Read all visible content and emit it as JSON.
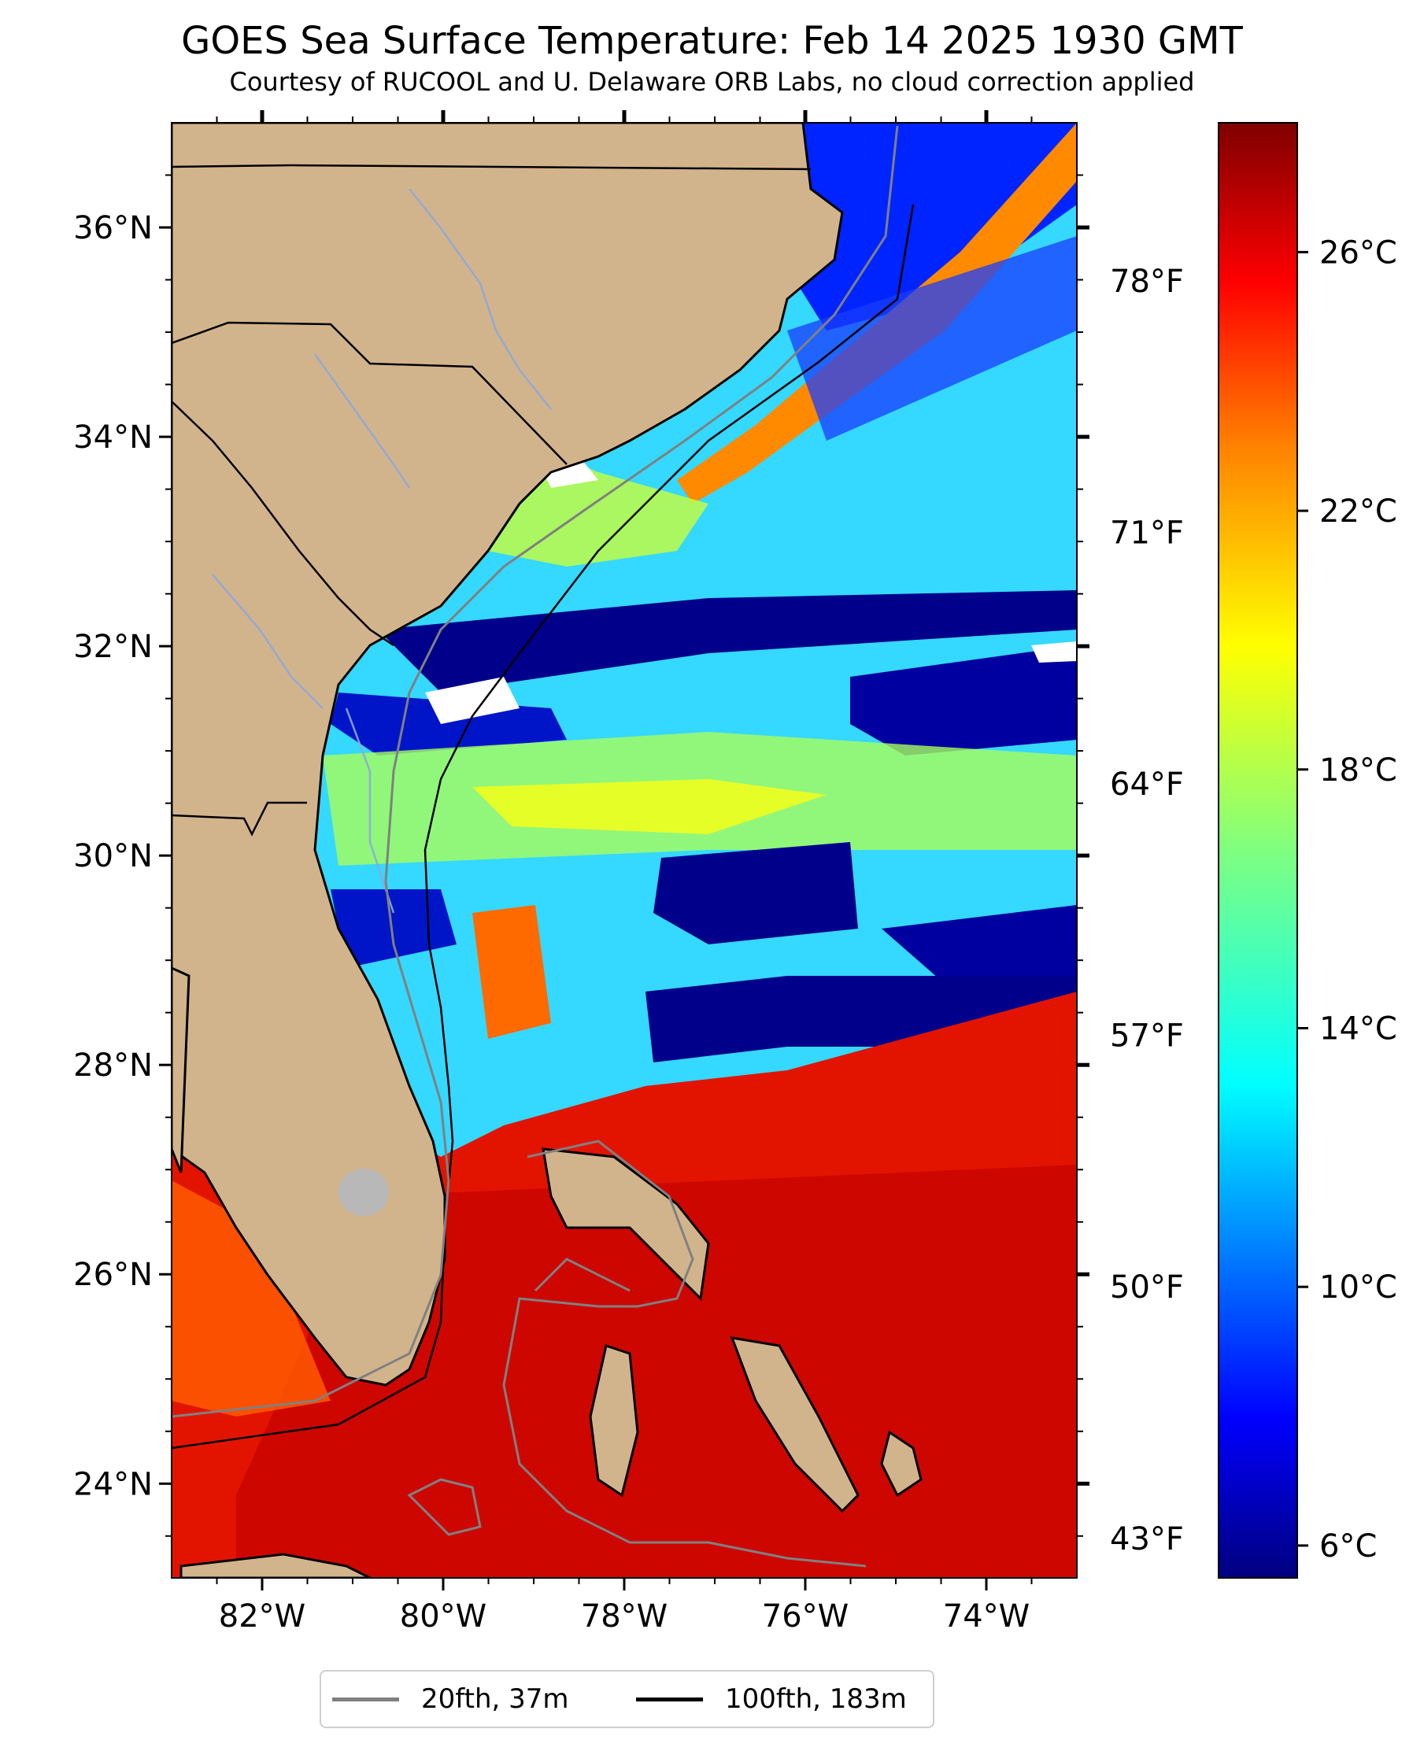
{
  "title": "GOES Sea Surface Temperature: Feb 14 2025 1930 GMT",
  "subtitle": "Courtesy of RUCOOL and U. Delaware ORB Labs, no cloud correction applied",
  "map": {
    "lon_range": [
      -83,
      -73
    ],
    "lat_range": [
      23.1,
      37.0
    ],
    "lat_ticks": [
      {
        "value": 36,
        "label": "36°N"
      },
      {
        "value": 34,
        "label": "34°N"
      },
      {
        "value": 32,
        "label": "32°N"
      },
      {
        "value": 30,
        "label": "30°N"
      },
      {
        "value": 28,
        "label": "28°N"
      },
      {
        "value": 26,
        "label": "26°N"
      },
      {
        "value": 24,
        "label": "24°N"
      }
    ],
    "lon_ticks": [
      {
        "value": -82,
        "label": "82°W"
      },
      {
        "value": -80,
        "label": "80°W"
      },
      {
        "value": -78,
        "label": "78°W"
      },
      {
        "value": -76,
        "label": "76°W"
      },
      {
        "value": -74,
        "label": "74°W"
      }
    ],
    "land_color": "#d2b48c",
    "water_colors": {
      "cold": "#00008b",
      "cool": "#0030ff",
      "mid": "#00e5ff",
      "warm": "#ffe800",
      "hot": "#d40000"
    }
  },
  "temp_axis": {
    "fahrenheit_ticks": [
      {
        "value": 78,
        "label": "78°F"
      },
      {
        "value": 71,
        "label": "71°F"
      },
      {
        "value": 64,
        "label": "64°F"
      },
      {
        "value": 57,
        "label": "57°F"
      },
      {
        "value": 50,
        "label": "50°F"
      },
      {
        "value": 43,
        "label": "43°F"
      }
    ]
  },
  "colorbar": {
    "range_c": [
      5.5,
      28.0
    ],
    "ticks": [
      {
        "value": 26,
        "label": "26°C"
      },
      {
        "value": 22,
        "label": "22°C"
      },
      {
        "value": 18,
        "label": "18°C"
      },
      {
        "value": 14,
        "label": "14°C"
      },
      {
        "value": 10,
        "label": "10°C"
      },
      {
        "value": 6,
        "label": "6°C"
      }
    ],
    "colormap": "jet"
  },
  "legend": {
    "items": [
      {
        "label": "20fth, 37m",
        "color": "#808080"
      },
      {
        "label": "100fth, 183m",
        "color": "#000000"
      }
    ]
  }
}
